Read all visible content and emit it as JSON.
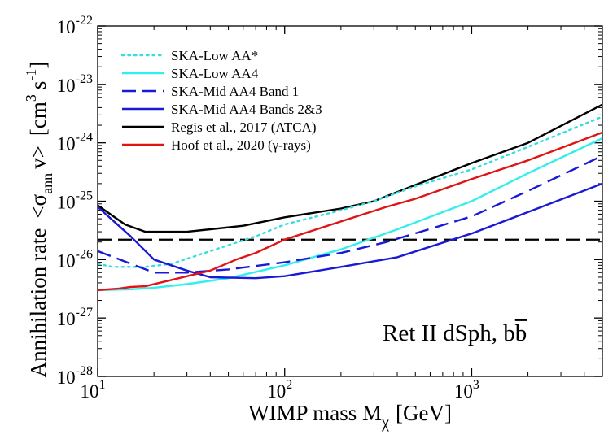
{
  "chart_data": {
    "type": "line",
    "title": "",
    "xlabel": "WIMP mass M",
    "xlabel_sub": "χ",
    "xlabel_unit": "[GeV]",
    "ylabel": "Annihilation rate",
    "ylabel_symbol": "<σ",
    "ylabel_sub": "ann",
    "ylabel_tail": "v>",
    "ylabel_unit_open": "[cm",
    "ylabel_unit_exp1": "3",
    "ylabel_unit_mid": "s",
    "ylabel_unit_exp2": "-1",
    "ylabel_unit_close": "]",
    "annotation": "Ret II dSph, b",
    "annotation_bbar": "b",
    "x_scale": "log",
    "y_scale": "log",
    "xlim": [
      10,
      5000
    ],
    "ylim": [
      1e-28,
      1e-22
    ],
    "x_ticks": [
      {
        "value": 10,
        "base": "10",
        "exp": "1"
      },
      {
        "value": 100,
        "base": "10",
        "exp": "2"
      },
      {
        "value": 1000,
        "base": "10",
        "exp": "3"
      }
    ],
    "y_ticks": [
      {
        "value": 1e-22,
        "base": "10",
        "exp": "-22"
      },
      {
        "value": 1e-23,
        "base": "10",
        "exp": "-23"
      },
      {
        "value": 1e-24,
        "base": "10",
        "exp": "-24"
      },
      {
        "value": 1e-25,
        "base": "10",
        "exp": "-25"
      },
      {
        "value": 1e-26,
        "base": "10",
        "exp": "-26"
      },
      {
        "value": 1e-27,
        "base": "10",
        "exp": "-27"
      },
      {
        "value": 1e-28,
        "base": "10",
        "exp": "-28"
      }
    ],
    "grid": false,
    "legend_position": "top-left",
    "reference_line": {
      "y": 2.2e-26,
      "color": "#000000",
      "style": "dashed"
    },
    "series": [
      {
        "name": "SKA-Low AA*",
        "color": "#33dede",
        "style": "dotted",
        "points": [
          [
            10,
            8.5e-27
          ],
          [
            12,
            7.5e-27
          ],
          [
            14,
            7.5e-27
          ],
          [
            18,
            7.5e-27
          ],
          [
            25,
            8.5e-27
          ],
          [
            40,
            1.4e-26
          ],
          [
            70,
            2.5e-26
          ],
          [
            100,
            4e-26
          ],
          [
            200,
            7e-26
          ],
          [
            300,
            1e-25
          ],
          [
            500,
            1.8e-25
          ],
          [
            1000,
            3.5e-25
          ],
          [
            2000,
            8.5e-25
          ],
          [
            5000,
            2.8e-24
          ]
        ]
      },
      {
        "name": "SKA-Low AA4",
        "color": "#33eeee",
        "style": "solid",
        "points": [
          [
            10,
            3e-27
          ],
          [
            15,
            3.1e-27
          ],
          [
            20,
            3.3e-27
          ],
          [
            30,
            3.8e-27
          ],
          [
            50,
            4.8e-27
          ],
          [
            100,
            8e-27
          ],
          [
            200,
            1.5e-26
          ],
          [
            400,
            3.3e-26
          ],
          [
            1000,
            1e-25
          ],
          [
            2000,
            3e-25
          ],
          [
            5000,
            1.2e-24
          ]
        ]
      },
      {
        "name": "SKA-Mid AA4 Band 1",
        "color": "#1a1ad6",
        "style": "dashed",
        "points": [
          [
            10,
            1.4e-26
          ],
          [
            15,
            8.5e-27
          ],
          [
            20,
            6e-27
          ],
          [
            30,
            6e-27
          ],
          [
            50,
            6.8e-27
          ],
          [
            100,
            9e-27
          ],
          [
            200,
            1.3e-26
          ],
          [
            350,
            2e-26
          ],
          [
            1000,
            5.5e-26
          ],
          [
            2000,
            1.5e-25
          ],
          [
            5000,
            6e-25
          ]
        ]
      },
      {
        "name": "SKA-Mid AA4 Bands 2&3",
        "color": "#1a1ad6",
        "style": "solid",
        "points": [
          [
            10,
            8e-26
          ],
          [
            15,
            2.5e-26
          ],
          [
            20,
            1e-26
          ],
          [
            30,
            6.5e-27
          ],
          [
            40,
            5e-27
          ],
          [
            70,
            4.8e-27
          ],
          [
            100,
            5.2e-27
          ],
          [
            200,
            7.5e-27
          ],
          [
            400,
            1.1e-26
          ],
          [
            1000,
            2.8e-26
          ],
          [
            2000,
            6.5e-26
          ],
          [
            5000,
            2e-25
          ]
        ]
      },
      {
        "name": "Regis et al., 2017 (ATCA)",
        "color": "#000000",
        "style": "solid",
        "points": [
          [
            10,
            8.5e-26
          ],
          [
            14,
            4e-26
          ],
          [
            18,
            3e-26
          ],
          [
            30,
            3e-26
          ],
          [
            60,
            3.8e-26
          ],
          [
            100,
            5.3e-26
          ],
          [
            200,
            7.5e-26
          ],
          [
            300,
            1e-25
          ],
          [
            500,
            1.9e-25
          ],
          [
            1000,
            4.5e-25
          ],
          [
            2000,
            1e-24
          ],
          [
            5000,
            4.5e-24
          ]
        ]
      },
      {
        "name": "Hoof et al., 2020 (γ-rays)",
        "color": "#e01414",
        "style": "solid",
        "points": [
          [
            10,
            3e-27
          ],
          [
            13,
            3.2e-27
          ],
          [
            15,
            3.4e-27
          ],
          [
            18,
            3.5e-27
          ],
          [
            25,
            4.5e-27
          ],
          [
            40,
            6.5e-27
          ],
          [
            55,
            1e-26
          ],
          [
            70,
            1.3e-26
          ],
          [
            100,
            2.2e-26
          ],
          [
            200,
            4.5e-26
          ],
          [
            350,
            8e-26
          ],
          [
            500,
            1.1e-25
          ],
          [
            1000,
            2.4e-25
          ],
          [
            2000,
            5e-25
          ],
          [
            5000,
            1.5e-24
          ]
        ]
      }
    ]
  }
}
